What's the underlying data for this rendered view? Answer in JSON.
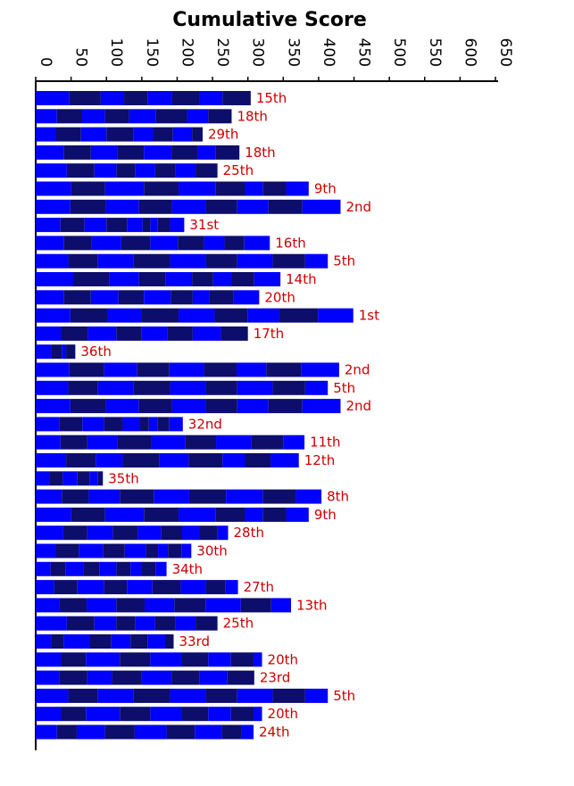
{
  "colors": {
    "light": "#0000ff",
    "dark": "#0d0d6b",
    "label": "#cc0000",
    "axis": "#000000"
  },
  "chart_data": {
    "type": "bar",
    "title": "Cumulative Score",
    "orientation": "horizontal-stacked",
    "xlim": [
      0,
      650
    ],
    "ticks": [
      0,
      50,
      100,
      150,
      200,
      250,
      300,
      350,
      400,
      450,
      500,
      550,
      600,
      650
    ],
    "bars": [
      {
        "segments": [
          47,
          45,
          33,
          33,
          35,
          38,
          33,
          40
        ],
        "label": "15th"
      },
      {
        "segments": [
          30,
          35,
          33,
          34,
          38,
          44,
          30,
          33
        ],
        "label": "18th"
      },
      {
        "segments": [
          29,
          35,
          36,
          38,
          28,
          28,
          27,
          15
        ],
        "label": "29th"
      },
      {
        "segments": [
          40,
          38,
          37,
          38,
          39,
          37,
          25,
          34
        ],
        "label": "18th"
      },
      {
        "segments": [
          44,
          39,
          31,
          27,
          28,
          29,
          28,
          31
        ],
        "label": "25th"
      },
      {
        "segments": [
          50,
          48,
          55,
          49,
          52,
          42,
          25,
          33,
          32
        ],
        "label": "9th"
      },
      {
        "segments": [
          49,
          50,
          47,
          47,
          48,
          44,
          44,
          48,
          54
        ],
        "label": "2nd"
      },
      {
        "segments": [
          35,
          34,
          31,
          29,
          22,
          11,
          10,
          18,
          20
        ],
        "label": "31st"
      },
      {
        "segments": [
          40,
          39,
          42,
          41,
          39,
          37,
          29,
          28,
          36
        ],
        "label": "16th"
      },
      {
        "segments": [
          46,
          42,
          50,
          52,
          51,
          44,
          50,
          46,
          32
        ],
        "label": "5th"
      },
      {
        "segments": [
          53,
          51,
          42,
          38,
          37,
          30,
          26,
          32,
          37
        ],
        "label": "14th"
      },
      {
        "segments": [
          40,
          38,
          39,
          36,
          38,
          31,
          24,
          34,
          36
        ],
        "label": "20th"
      },
      {
        "segments": [
          49,
          52,
          48,
          53,
          51,
          47,
          44,
          55,
          50
        ],
        "label": "1st"
      },
      {
        "segments": [
          36,
          38,
          40,
          36,
          36,
          36,
          40,
          38
        ],
        "label": "17th"
      },
      {
        "segments": [
          22,
          15,
          6,
          13
        ],
        "label": "36th"
      },
      {
        "segments": [
          47,
          50,
          46,
          46,
          49,
          46,
          42,
          49,
          54
        ],
        "label": "2nd"
      },
      {
        "segments": [
          46,
          42,
          50,
          52,
          51,
          44,
          50,
          46,
          32
        ],
        "label": "5th"
      },
      {
        "segments": [
          49,
          50,
          47,
          47,
          48,
          44,
          44,
          48,
          54
        ],
        "label": "2nd"
      },
      {
        "segments": [
          33,
          33,
          31,
          26,
          24,
          13,
          12,
          17,
          19
        ],
        "label": "32nd"
      },
      {
        "segments": [
          35,
          38,
          42,
          49,
          47,
          44,
          50,
          45,
          30
        ],
        "label": "11th"
      },
      {
        "segments": [
          43,
          42,
          38,
          52,
          41,
          48,
          32,
          36,
          40
        ],
        "label": "12th"
      },
      {
        "segments": [
          19,
          19,
          21,
          17,
          12,
          7
        ],
        "label": "35th"
      },
      {
        "segments": [
          37,
          38,
          44,
          48,
          50,
          52,
          52,
          47,
          36
        ],
        "label": "8th"
      },
      {
        "segments": [
          50,
          48,
          55,
          49,
          52,
          42,
          25,
          33,
          32
        ],
        "label": "9th"
      },
      {
        "segments": [
          39,
          34,
          36,
          35,
          33,
          30,
          24,
          26,
          15
        ],
        "label": "28th"
      },
      {
        "segments": [
          29,
          32,
          34,
          31,
          30,
          17,
          14,
          19,
          14
        ],
        "label": "30th"
      },
      {
        "segments": [
          21,
          21,
          25,
          23,
          24,
          20,
          15,
          21,
          15
        ],
        "label": "34th"
      },
      {
        "segments": [
          26,
          33,
          38,
          32,
          36,
          40,
          36,
          27,
          18
        ],
        "label": "27th"
      },
      {
        "segments": [
          34,
          38,
          42,
          40,
          42,
          44,
          50,
          43,
          28
        ],
        "label": "13th"
      },
      {
        "segments": [
          44,
          39,
          31,
          27,
          28,
          29,
          28,
          31
        ],
        "label": "25th"
      },
      {
        "segments": [
          22,
          18,
          37,
          30,
          27,
          24,
          25,
          12
        ],
        "label": "33rd"
      },
      {
        "segments": [
          36,
          35,
          48,
          43,
          45,
          37,
          32,
          32,
          12
        ],
        "label": "20th"
      },
      {
        "segments": [
          33,
          40,
          35,
          41,
          43,
          40,
          39,
          38
        ],
        "label": "23rd"
      },
      {
        "segments": [
          46,
          42,
          50,
          52,
          51,
          44,
          50,
          46,
          32
        ],
        "label": "5th"
      },
      {
        "segments": [
          36,
          35,
          48,
          43,
          45,
          37,
          32,
          32,
          12
        ],
        "label": "20th"
      },
      {
        "segments": [
          30,
          28,
          40,
          42,
          45,
          40,
          38,
          28,
          17
        ],
        "label": "24th"
      }
    ]
  }
}
